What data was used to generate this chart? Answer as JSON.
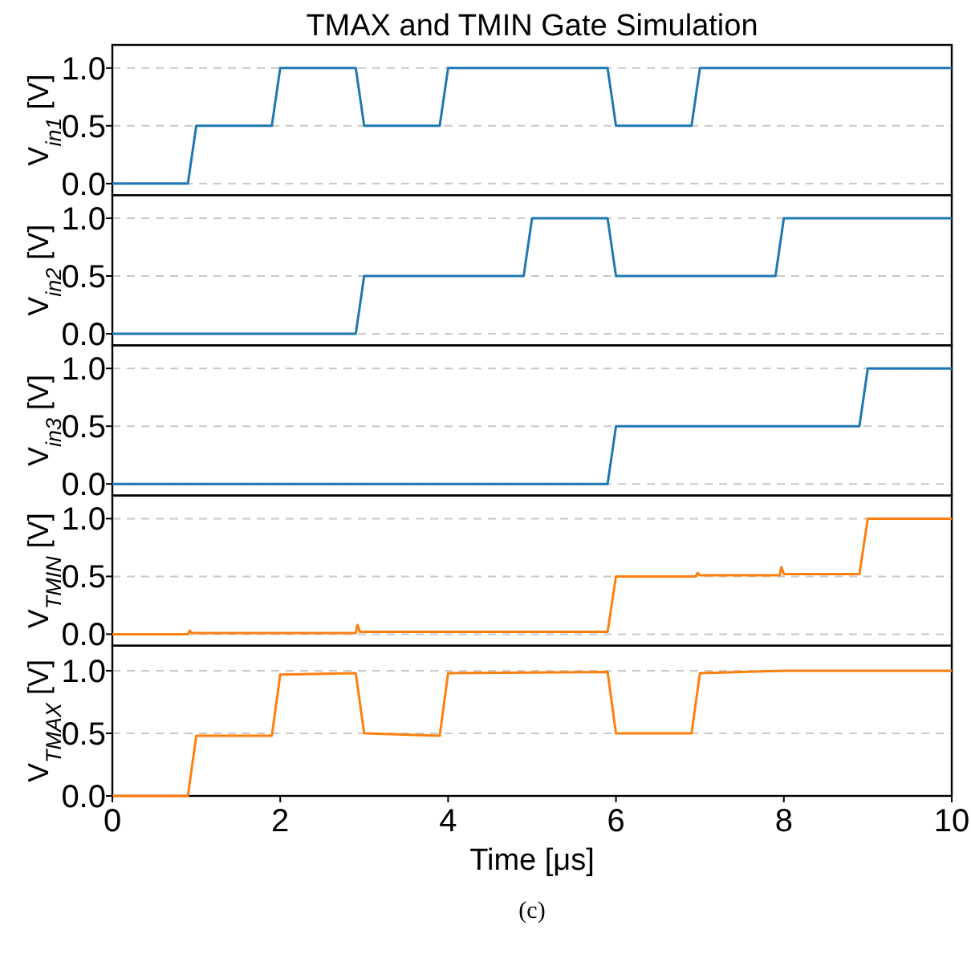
{
  "chart_data": [
    {
      "type": "line",
      "title": "TMAX and TMIN Gate Simulation",
      "ylabel": "V$_{in1}$ [V]",
      "xlim": [
        0,
        10
      ],
      "ylim": [
        -0.1,
        1.2
      ],
      "yticks": [
        {
          "value": 0,
          "label": "0.0"
        },
        {
          "value": 0.5,
          "label": "0.5"
        },
        {
          "value": 1,
          "label": "1.0"
        }
      ],
      "grid": "y",
      "tick_labels": "y",
      "marker": "none",
      "series": [
        {
          "color": "#1f77b4",
          "x": [
            0,
            0.9,
            1.0,
            1.9,
            2.0,
            2.9,
            3.0,
            3.9,
            4.0,
            5.9,
            6.0,
            6.9,
            7.0,
            10
          ],
          "values": [
            0,
            0,
            0.5,
            0.5,
            1,
            1,
            0.5,
            0.5,
            1,
            1,
            0.5,
            0.5,
            1,
            1
          ]
        }
      ]
    },
    {
      "type": "line",
      "ylabel": "V$_{in2}$ [V]",
      "xlim": [
        0,
        10
      ],
      "ylim": [
        -0.1,
        1.2
      ],
      "yticks": [
        {
          "value": 0,
          "label": "0.0"
        },
        {
          "value": 0.5,
          "label": "0.5"
        },
        {
          "value": 1,
          "label": "1.0"
        }
      ],
      "grid": "y",
      "tick_labels": "y",
      "marker": "none",
      "series": [
        {
          "color": "#1f77b4",
          "x": [
            0,
            2.9,
            3.0,
            4.9,
            5.0,
            5.9,
            6.0,
            7.9,
            8.0,
            10
          ],
          "values": [
            0,
            0,
            0.5,
            0.5,
            1,
            1,
            0.5,
            0.5,
            1,
            1
          ]
        }
      ]
    },
    {
      "type": "line",
      "ylabel": "V$_{in3}$ [V]",
      "xlim": [
        0,
        10
      ],
      "ylim": [
        -0.1,
        1.2
      ],
      "yticks": [
        {
          "value": 0,
          "label": "0.0"
        },
        {
          "value": 0.5,
          "label": "0.5"
        },
        {
          "value": 1,
          "label": "1.0"
        }
      ],
      "grid": "y",
      "tick_labels": "y",
      "marker": "none",
      "series": [
        {
          "color": "#1f77b4",
          "x": [
            0,
            5.9,
            6.0,
            8.9,
            9.0,
            10
          ],
          "values": [
            0,
            0,
            0.5,
            0.5,
            1,
            1
          ]
        }
      ]
    },
    {
      "type": "line",
      "ylabel": "V$_{TMIN}$ [V]",
      "xlim": [
        0,
        10
      ],
      "ylim": [
        -0.1,
        1.2
      ],
      "yticks": [
        {
          "value": 0,
          "label": "0.0"
        },
        {
          "value": 0.5,
          "label": "0.5"
        },
        {
          "value": 1,
          "label": "1.0"
        }
      ],
      "grid": "y",
      "tick_labels": "y",
      "marker": "none",
      "series": [
        {
          "color": "#ff7f0e",
          "x": [
            0,
            0.9,
            0.92,
            0.95,
            2.9,
            2.92,
            2.95,
            5.9,
            6.0,
            6.95,
            6.97,
            7.0,
            7.95,
            7.97,
            8.0,
            8.9,
            9.0,
            10
          ],
          "values": [
            0,
            0,
            0.03,
            0.01,
            0.01,
            0.08,
            0.02,
            0.02,
            0.5,
            0.5,
            0.53,
            0.51,
            0.51,
            0.58,
            0.52,
            0.52,
            1,
            1
          ]
        }
      ]
    },
    {
      "type": "line",
      "ylabel": "V$_{TMAX}$ [V]",
      "xlabel": "Time [μs]",
      "annotations": [
        "(c)"
      ],
      "xlim": [
        0,
        10
      ],
      "ylim": [
        0,
        1.2
      ],
      "xticks": [
        0,
        2,
        4,
        6,
        8,
        10
      ],
      "yticks": [
        {
          "value": 0,
          "label": "0.0"
        },
        {
          "value": 0.5,
          "label": "0.5"
        },
        {
          "value": 1,
          "label": "1.0"
        }
      ],
      "grid": "y",
      "marker": "none",
      "series": [
        {
          "color": "#ff7f0e",
          "x": [
            0,
            0.9,
            1.0,
            1.9,
            2.0,
            2.9,
            3.0,
            3.9,
            4.0,
            5.9,
            6.0,
            6.9,
            7.0,
            8.0,
            10
          ],
          "values": [
            0,
            0,
            0.48,
            0.48,
            0.97,
            0.98,
            0.5,
            0.48,
            0.98,
            0.99,
            0.5,
            0.5,
            0.98,
            1,
            1
          ]
        }
      ]
    }
  ]
}
